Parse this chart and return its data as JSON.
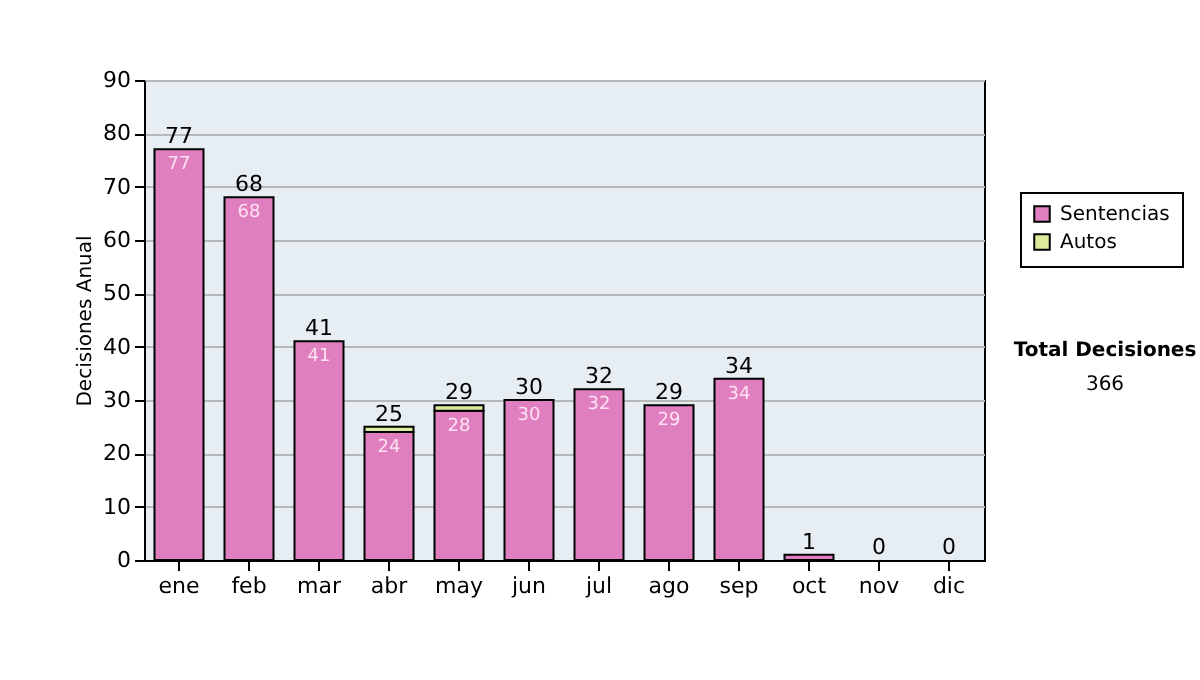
{
  "chart_data": {
    "type": "bar",
    "stacked": true,
    "ylabel": "Decisiones Anual",
    "categories": [
      "ene",
      "feb",
      "mar",
      "abr",
      "may",
      "jun",
      "jul",
      "ago",
      "sep",
      "oct",
      "nov",
      "dic"
    ],
    "series": [
      {
        "name": "Sentencias",
        "color": "#df7fc0",
        "values": [
          77,
          68,
          41,
          24,
          28,
          30,
          32,
          29,
          34,
          1,
          0,
          0
        ],
        "value_labels": [
          "77",
          "68",
          "41",
          "24",
          "28",
          "30",
          "32",
          "29",
          "34",
          null,
          null,
          null
        ]
      },
      {
        "name": "Autos",
        "color": "#dcec9c",
        "values": [
          0,
          0,
          0,
          1,
          1,
          0,
          0,
          0,
          0,
          0,
          0,
          0
        ]
      }
    ],
    "totals": [
      "77",
      "68",
      "41",
      "25",
      "29",
      "30",
      "32",
      "29",
      "34",
      "1",
      "0",
      "0"
    ],
    "ylim": [
      0,
      90
    ],
    "yticks": [
      0,
      10,
      20,
      30,
      40,
      50,
      60,
      70,
      80,
      90
    ],
    "grid": "y",
    "legend": "right",
    "annotations": [
      "Total Decisiones",
      "366"
    ]
  }
}
